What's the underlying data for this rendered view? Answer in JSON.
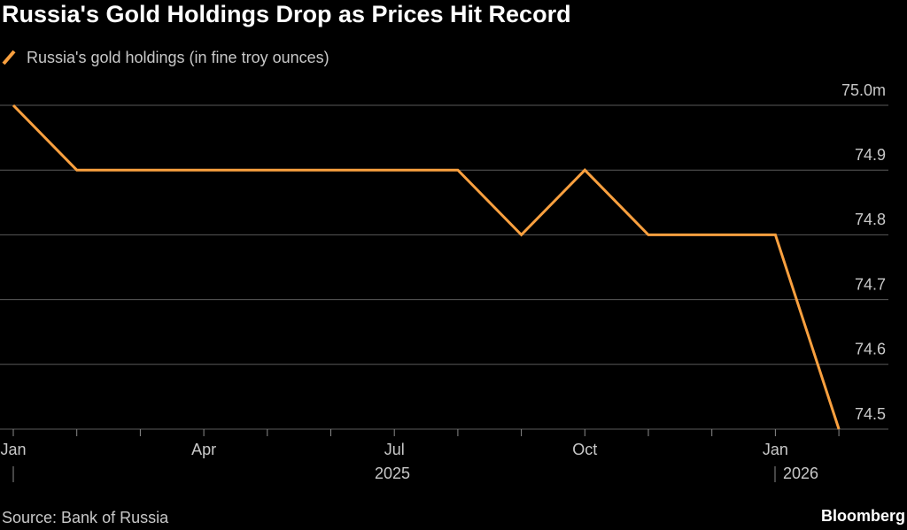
{
  "chart_data": {
    "type": "line",
    "title": "Russia's Gold Holdings Drop as Prices Hit Record",
    "categories": [
      "Jan",
      null,
      null,
      "Apr",
      null,
      null,
      "Jul",
      null,
      null,
      "Oct",
      null,
      null,
      "Jan",
      null
    ],
    "x_year_labels": [
      "2025",
      "2026"
    ],
    "series": [
      {
        "name": "Russia's gold holdings (in fine troy ounces)",
        "color": "#f9a03f",
        "values": [
          75.0,
          74.9,
          74.9,
          74.9,
          74.9,
          74.9,
          74.9,
          74.9,
          74.8,
          74.9,
          74.8,
          74.8,
          74.8,
          74.5
        ]
      }
    ],
    "ylim": [
      74.5,
      75.0
    ],
    "yticks": [
      74.5,
      74.6,
      74.7,
      74.8,
      74.9,
      {
        "value": 75.0,
        "label": "75.0m"
      }
    ],
    "grid": true,
    "source": "Source: Bank of Russia",
    "brand": "Bloomberg"
  }
}
